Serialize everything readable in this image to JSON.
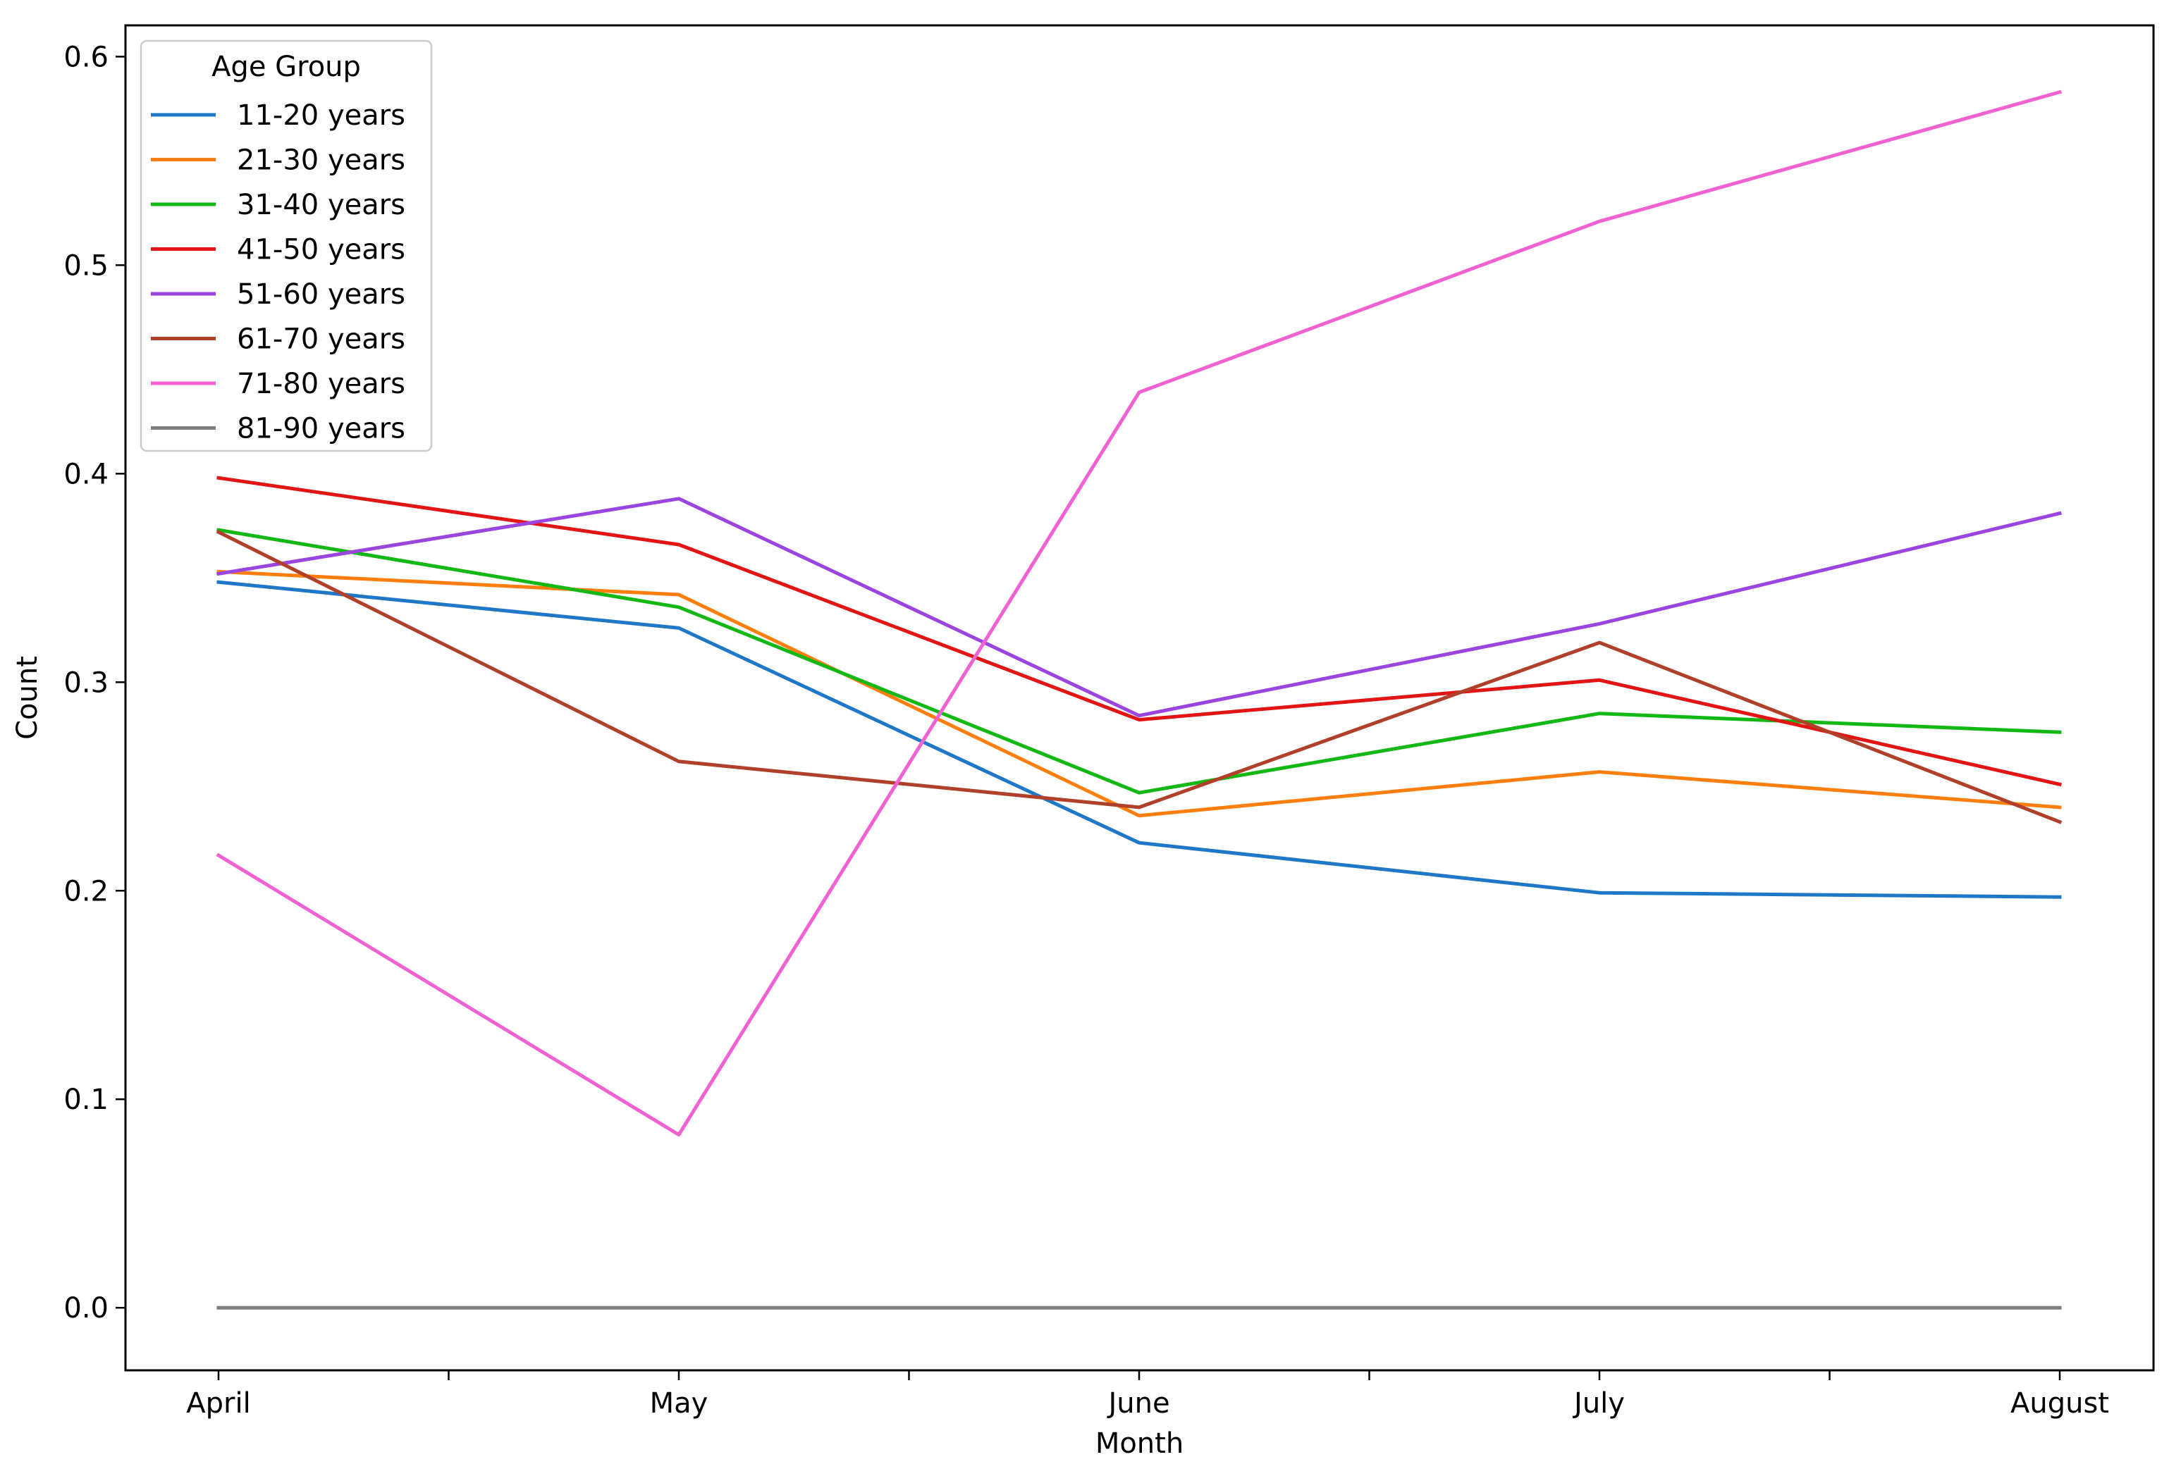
{
  "chart_data": {
    "type": "line",
    "title": "",
    "xlabel": "Month",
    "ylabel": "Count",
    "categories": [
      "April",
      "May",
      "June",
      "July",
      "August"
    ],
    "ylim": [
      -0.03,
      0.615
    ],
    "yticks": [
      0.0,
      0.1,
      0.2,
      0.3,
      0.4,
      0.5,
      0.6
    ],
    "ytick_labels": [
      "0.0",
      "0.1",
      "0.2",
      "0.3",
      "0.4",
      "0.5",
      "0.6"
    ],
    "grid": false,
    "legend": {
      "title": "Age Group",
      "placement": "top-left"
    },
    "series": [
      {
        "name": "11-20 years",
        "color": "#1f77c8",
        "values": [
          0.348,
          0.326,
          0.223,
          0.199,
          0.197
        ]
      },
      {
        "name": "21-30 years",
        "color": "#ff7f0e",
        "values": [
          0.353,
          0.342,
          0.236,
          0.257,
          0.24
        ]
      },
      {
        "name": "31-40 years",
        "color": "#14b814",
        "values": [
          0.373,
          0.336,
          0.247,
          0.285,
          0.276
        ]
      },
      {
        "name": "41-50 years",
        "color": "#e31414",
        "values": [
          0.398,
          0.366,
          0.282,
          0.301,
          0.251
        ]
      },
      {
        "name": "51-60 years",
        "color": "#9b45e0",
        "values": [
          0.352,
          0.388,
          0.284,
          0.328,
          0.381
        ]
      },
      {
        "name": "61-70 years",
        "color": "#b0402a",
        "values": [
          0.372,
          0.262,
          0.24,
          0.319,
          0.233
        ]
      },
      {
        "name": "71-80 years",
        "color": "#f062d2",
        "values": [
          0.217,
          0.083,
          0.439,
          0.521,
          0.583
        ]
      },
      {
        "name": "81-90 years",
        "color": "#7f7f7f",
        "values": [
          0.0,
          0.0,
          0.0,
          0.0,
          0.0
        ]
      }
    ]
  }
}
